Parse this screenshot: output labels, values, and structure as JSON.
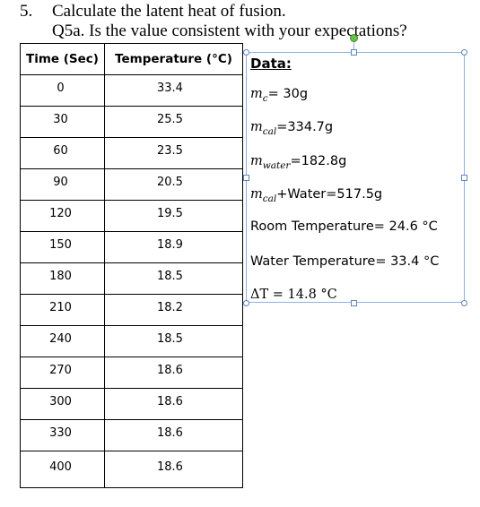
{
  "question": {
    "number": "5.",
    "main_text": "Calculate the latent heat of fusion.",
    "sub_text": "Q5a. Is the value consistent with your expectations?"
  },
  "table": {
    "headers": [
      "Time (Sec)",
      "Temperature (°C)"
    ],
    "rows": [
      [
        "0",
        "33.4"
      ],
      [
        "30",
        "25.5"
      ],
      [
        "60",
        "23.5"
      ],
      [
        "90",
        "20.5"
      ],
      [
        "120",
        "19.5"
      ],
      [
        "150",
        "18.9"
      ],
      [
        "180",
        "18.5"
      ],
      [
        "210",
        "18.2"
      ],
      [
        "240",
        "18.5"
      ],
      [
        "270",
        "18.6"
      ],
      [
        "300",
        "18.6"
      ],
      [
        "330",
        "18.6"
      ],
      [
        "400",
        "18.6"
      ]
    ]
  },
  "data_box": {
    "title": "Data:",
    "mc": {
      "var": "m",
      "sub": "c",
      "text": "= 30g"
    },
    "mcal": {
      "var": "m",
      "sub": "cal",
      "text": "=334.7g"
    },
    "mwater": {
      "var": "m",
      "sub": "water",
      "text": "=182.8g"
    },
    "mcal_water": {
      "var": "m",
      "sub": "cal",
      "text": "+Water=517.5g"
    },
    "room_temp": "Room Temperature= 24.6 °C",
    "water_temp": "Water Temperature= 33.4 °C",
    "delta_t": "ΔT = 14.8 °C"
  },
  "colors": {
    "selection_border": "#8fb1dc",
    "handle_border": "#5b85c2",
    "rotate_handle": "#6abf4b"
  }
}
